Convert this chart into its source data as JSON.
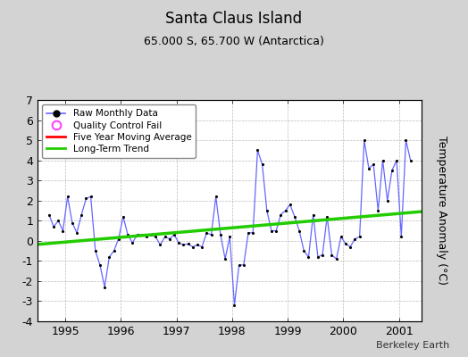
{
  "title": "Santa Claus Island",
  "subtitle": "65.000 S, 65.700 W (Antarctica)",
  "ylabel": "Temperature Anomaly (°C)",
  "credit": "Berkeley Earth",
  "xlim": [
    1994.5,
    2001.4
  ],
  "ylim": [
    -4,
    7
  ],
  "yticks": [
    -4,
    -3,
    -2,
    -1,
    0,
    1,
    2,
    3,
    4,
    5,
    6,
    7
  ],
  "xticks": [
    1995,
    1996,
    1997,
    1998,
    1999,
    2000,
    2001
  ],
  "bg_color": "#d3d3d3",
  "plot_bg_color": "#ffffff",
  "raw_color": "#6666ff",
  "marker_color": "#000000",
  "trend_color": "#22cc00",
  "mavg_color": "#ff0000",
  "qc_color": "#ff44ff",
  "raw_x": [
    1994.708,
    1994.792,
    1994.875,
    1994.958,
    1995.042,
    1995.125,
    1995.208,
    1995.292,
    1995.375,
    1995.458,
    1995.542,
    1995.625,
    1995.708,
    1995.792,
    1995.875,
    1995.958,
    1996.042,
    1996.125,
    1996.208,
    1996.292,
    1996.375,
    1996.458,
    1996.542,
    1996.625,
    1996.708,
    1996.792,
    1996.875,
    1996.958,
    1997.042,
    1997.125,
    1997.208,
    1997.292,
    1997.375,
    1997.458,
    1997.542,
    1997.625,
    1997.708,
    1997.792,
    1997.875,
    1997.958,
    1998.042,
    1998.125,
    1998.208,
    1998.292,
    1998.375,
    1998.458,
    1998.542,
    1998.625,
    1998.708,
    1998.792,
    1998.875,
    1998.958,
    1999.042,
    1999.125,
    1999.208,
    1999.292,
    1999.375,
    1999.458,
    1999.542,
    1999.625,
    1999.708,
    1999.792,
    1999.875,
    1999.958,
    2000.042,
    2000.125,
    2000.208,
    2000.292,
    2000.375,
    2000.458,
    2000.542,
    2000.625,
    2000.708,
    2000.792,
    2000.875,
    2000.958,
    2001.042,
    2001.125,
    2001.208
  ],
  "raw_y": [
    1.3,
    0.7,
    1.0,
    0.5,
    2.2,
    0.9,
    0.4,
    1.3,
    2.1,
    2.2,
    -0.5,
    -1.2,
    -2.3,
    -0.8,
    -0.5,
    0.1,
    1.2,
    0.3,
    -0.1,
    0.3,
    0.3,
    0.2,
    0.3,
    0.2,
    -0.2,
    0.2,
    0.1,
    0.3,
    -0.1,
    -0.2,
    -0.15,
    -0.3,
    -0.2,
    -0.3,
    0.4,
    0.3,
    2.2,
    0.3,
    -0.9,
    0.2,
    -3.2,
    -1.2,
    -1.2,
    0.4,
    0.4,
    4.5,
    3.8,
    1.5,
    0.5,
    0.5,
    1.3,
    1.5,
    1.8,
    1.2,
    0.5,
    -0.5,
    -0.8,
    1.3,
    -0.8,
    -0.7,
    1.2,
    -0.7,
    -0.9,
    0.2,
    -0.15,
    -0.3,
    0.1,
    0.2,
    5.0,
    3.6,
    3.8,
    1.5,
    4.0,
    2.0,
    3.5,
    4.0,
    0.2,
    5.0,
    4.0
  ],
  "trend_x": [
    1994.5,
    2001.4
  ],
  "trend_y": [
    -0.18,
    1.45
  ]
}
